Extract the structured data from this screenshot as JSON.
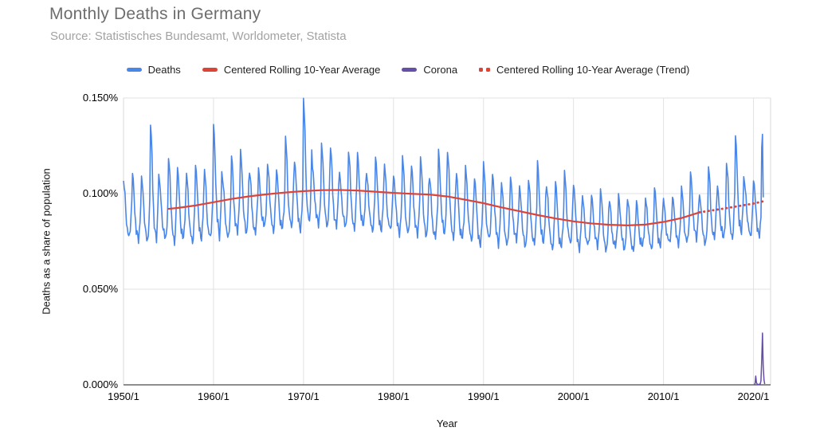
{
  "header": {
    "title": "Monthly Deaths in Germany",
    "subtitle": "Source: Statistisches Bundesamt, Worldometer, Statista"
  },
  "legend": {
    "items": [
      {
        "label": "Deaths",
        "color": "#4a86e8",
        "swatch": "solid"
      },
      {
        "label": "Centered Rolling 10-Year Average",
        "color": "#dc4437",
        "swatch": "solid"
      },
      {
        "label": "Corona",
        "color": "#674ea7",
        "swatch": "solid"
      },
      {
        "label": "Centered Rolling 10-Year Average (Trend)",
        "color": "#dc4437",
        "swatch": "dotted"
      }
    ]
  },
  "axes": {
    "y_title": "Deaths as a share of population",
    "x_title": "Year"
  },
  "colors": {
    "deaths_blue": "#4a86e8",
    "average_red": "#dc4437",
    "corona_purple": "#674ea7",
    "gridline": "#e2e2e2",
    "plot_border": "#d9d9d9",
    "axis_line": "#4a4a4a",
    "title_gray": "#6d6d6d",
    "subtitle_gray": "#a2a2a2"
  },
  "chart_data": {
    "type": "line",
    "title": "Monthly Deaths in Germany",
    "subtitle": "Source: Statistisches Bundesamt, Worldometer, Statista",
    "xlabel": "Year",
    "ylabel": "Deaths as a share of population",
    "xlim": [
      1950,
      2021.9
    ],
    "ylim": [
      0,
      0.15
    ],
    "grid": true,
    "legend_position": "top",
    "y_ticks": [
      {
        "label": "0.150%",
        "value": 0.15
      },
      {
        "label": "0.100%",
        "value": 0.1
      },
      {
        "label": "0.050%",
        "value": 0.05
      },
      {
        "label": "0.000%",
        "value": 0.0
      }
    ],
    "x_ticks": [
      {
        "label": "1950/1",
        "value": 1950
      },
      {
        "label": "1960/1",
        "value": 1960
      },
      {
        "label": "1970/1",
        "value": 1970
      },
      {
        "label": "1980/1",
        "value": 1980
      },
      {
        "label": "1990/1",
        "value": 1990
      },
      {
        "label": "2000/1",
        "value": 2000
      },
      {
        "label": "2010/1",
        "value": 2010
      },
      {
        "label": "2020/1",
        "value": 2020
      }
    ],
    "series": [
      {
        "name": "Deaths",
        "color": "#4a86e8",
        "style": "solid",
        "width": 1.6,
        "kind": "monthly_envelope",
        "unit": "percent of population, monthly",
        "monthly_envelope": {
          "year_start": 1950,
          "year_end": 2021,
          "end_month": "2021-2",
          "seasonal_weights": [
            1.0,
            0.9,
            0.74,
            0.48,
            0.3,
            0.16,
            0.14,
            0.07,
            0.02,
            0.14,
            0.32,
            0.6
          ],
          "winter_peak_pct": [
            0.106,
            0.111,
            0.109,
            0.136,
            0.106,
            0.119,
            0.113,
            0.111,
            0.115,
            0.112,
            0.137,
            0.107,
            0.12,
            0.123,
            0.111,
            0.113,
            0.116,
            0.112,
            0.13,
            0.117,
            0.149,
            0.114,
            0.126,
            0.124,
            0.111,
            0.122,
            0.121,
            0.111,
            0.119,
            0.115,
            0.11,
            0.119,
            0.115,
            0.119,
            0.108,
            0.123,
            0.122,
            0.11,
            0.115,
            0.108,
            0.116,
            0.111,
            0.105,
            0.109,
            0.104,
            0.107,
            0.117,
            0.104,
            0.106,
            0.112,
            0.105,
            0.098,
            0.1,
            0.102,
            0.096,
            0.1,
            0.097,
            0.096,
            0.098,
            0.103,
            0.097,
            0.099,
            0.103,
            0.112,
            0.099,
            0.114,
            0.104,
            0.116,
            0.13,
            0.106,
            0.107,
            0.131
          ],
          "summer_trough_pct": [
            0.077,
            0.074,
            0.075,
            0.074,
            0.075,
            0.074,
            0.075,
            0.073,
            0.076,
            0.075,
            0.076,
            0.077,
            0.078,
            0.078,
            0.079,
            0.081,
            0.08,
            0.081,
            0.08,
            0.081,
            0.082,
            0.083,
            0.082,
            0.081,
            0.082,
            0.081,
            0.081,
            0.08,
            0.08,
            0.079,
            0.079,
            0.078,
            0.077,
            0.077,
            0.076,
            0.077,
            0.076,
            0.075,
            0.074,
            0.073,
            0.074,
            0.073,
            0.073,
            0.074,
            0.072,
            0.073,
            0.072,
            0.071,
            0.071,
            0.072,
            0.071,
            0.072,
            0.072,
            0.07,
            0.071,
            0.07,
            0.07,
            0.071,
            0.071,
            0.072,
            0.073,
            0.074,
            0.074,
            0.075,
            0.074,
            0.075,
            0.076,
            0.076,
            0.077,
            0.077,
            0.078,
            0.078
          ],
          "overrides": {
            "2020-12": 0.124,
            "2021-1": 0.131,
            "2021-2": 0.098
          },
          "notable_peaks": {
            "1953": 0.136,
            "1960": 0.137,
            "1968": 0.13,
            "1970": 0.149,
            "2018": 0.13,
            "2021-1": 0.131
          }
        }
      },
      {
        "name": "Centered Rolling 10-Year Average",
        "color": "#dc4437",
        "style": "solid",
        "width": 2.2,
        "kind": "points",
        "points": [
          [
            1954.9,
            0.092
          ],
          [
            1956,
            0.0925
          ],
          [
            1958,
            0.0938
          ],
          [
            1960,
            0.0955
          ],
          [
            1962,
            0.0972
          ],
          [
            1964,
            0.0986
          ],
          [
            1966,
            0.0997
          ],
          [
            1968,
            0.1006
          ],
          [
            1970,
            0.1013
          ],
          [
            1972,
            0.1018
          ],
          [
            1974,
            0.1019
          ],
          [
            1976,
            0.1016
          ],
          [
            1978,
            0.101
          ],
          [
            1980,
            0.1004
          ],
          [
            1982,
            0.0999
          ],
          [
            1984,
            0.0995
          ],
          [
            1986,
            0.0985
          ],
          [
            1988,
            0.0968
          ],
          [
            1990,
            0.095
          ],
          [
            1992,
            0.0928
          ],
          [
            1994,
            0.0908
          ],
          [
            1996,
            0.0888
          ],
          [
            1998,
            0.087
          ],
          [
            2000,
            0.0855
          ],
          [
            2002,
            0.0844
          ],
          [
            2004,
            0.0837
          ],
          [
            2006,
            0.0834
          ],
          [
            2008,
            0.0838
          ],
          [
            2010,
            0.0852
          ],
          [
            2012,
            0.0872
          ],
          [
            2014,
            0.0902
          ]
        ]
      },
      {
        "name": "Centered Rolling 10-Year Average (Trend)",
        "color": "#dc4437",
        "style": "dotted",
        "width": 2.8,
        "kind": "points",
        "points": [
          [
            2014,
            0.0902
          ],
          [
            2015.5,
            0.0913
          ],
          [
            2017,
            0.0924
          ],
          [
            2018.5,
            0.0936
          ],
          [
            2020,
            0.0948
          ],
          [
            2021.3,
            0.0962
          ]
        ]
      },
      {
        "name": "Corona",
        "color": "#674ea7",
        "style": "solid",
        "width": 1.5,
        "kind": "points",
        "points": [
          [
            2020.08,
            0.0002
          ],
          [
            2020.17,
            0.0005
          ],
          [
            2020.25,
            0.0046
          ],
          [
            2020.33,
            0.0012
          ],
          [
            2020.42,
            0.0003
          ],
          [
            2020.5,
            0.0002
          ],
          [
            2020.58,
            0.0002
          ],
          [
            2020.67,
            0.0003
          ],
          [
            2020.75,
            0.0005
          ],
          [
            2020.83,
            0.002
          ],
          [
            2020.92,
            0.0135
          ],
          [
            2021.0,
            0.0271
          ],
          [
            2021.08,
            0.01
          ],
          [
            2021.17,
            0.0025
          ],
          [
            2021.25,
            0.0004
          ]
        ]
      }
    ]
  }
}
